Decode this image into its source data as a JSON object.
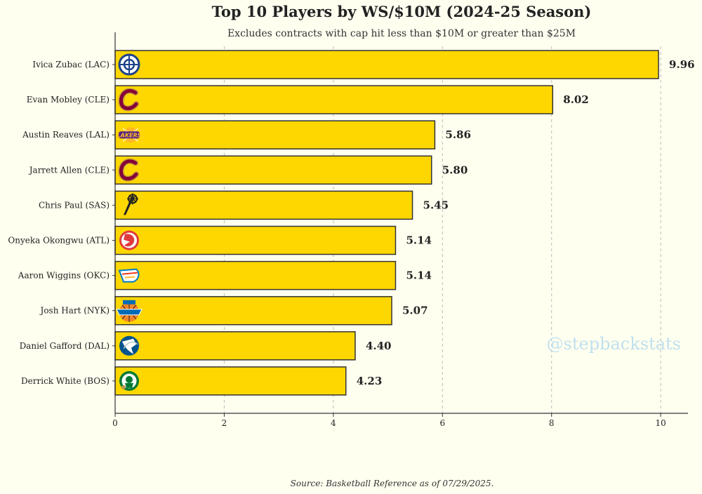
{
  "chart_data": {
    "type": "bar",
    "orientation": "horizontal",
    "title": "Top 10 Players by WS/$10M (2024-25 Season)",
    "subtitle": "Excludes contracts with cap hit less than $10M or greater than $25M",
    "xlabel": "",
    "ylabel": "",
    "xlim": [
      0,
      10.5
    ],
    "x_ticks": [
      0,
      2,
      4,
      6,
      8,
      10
    ],
    "grid": "vertical-dashed",
    "bar_color": "#ffd700",
    "bar_edge_color": "#333333",
    "categories": [
      "Ivica Zubac (LAC)",
      "Evan Mobley (CLE)",
      "Austin Reaves (LAL)",
      "Jarrett Allen (CLE)",
      "Chris Paul (SAS)",
      "Onyeka Okongwu (ATL)",
      "Aaron Wiggins (OKC)",
      "Josh Hart (NYK)",
      "Daniel Gafford (DAL)",
      "Derrick White (BOS)"
    ],
    "values": [
      9.96,
      8.02,
      5.86,
      5.8,
      5.45,
      5.14,
      5.14,
      5.07,
      4.4,
      4.23
    ],
    "value_labels": [
      "9.96",
      "8.02",
      "5.86",
      "5.80",
      "5.45",
      "5.14",
      "5.14",
      "5.07",
      "4.40",
      "4.23"
    ],
    "team_logos": [
      {
        "team": "LAC",
        "icon": "clippers-logo-icon",
        "color": "#1d428a"
      },
      {
        "team": "CLE",
        "icon": "cavaliers-logo-icon",
        "color": "#860038"
      },
      {
        "team": "LAL",
        "icon": "lakers-logo-icon",
        "color": "#552583"
      },
      {
        "team": "CLE",
        "icon": "cavaliers-logo-icon",
        "color": "#860038"
      },
      {
        "team": "SAS",
        "icon": "spurs-logo-icon",
        "color": "#222222"
      },
      {
        "team": "ATL",
        "icon": "hawks-logo-icon",
        "color": "#e03a3e"
      },
      {
        "team": "OKC",
        "icon": "thunder-logo-icon",
        "color": "#007ac1"
      },
      {
        "team": "NYK",
        "icon": "knicks-logo-icon",
        "color": "#f58426"
      },
      {
        "team": "DAL",
        "icon": "mavericks-logo-icon",
        "color": "#00538c"
      },
      {
        "team": "BOS",
        "icon": "celtics-logo-icon",
        "color": "#007a33"
      }
    ]
  },
  "watermark": "@stepbackstats",
  "source": "Source: Basketball Reference as of 07/29/2025."
}
